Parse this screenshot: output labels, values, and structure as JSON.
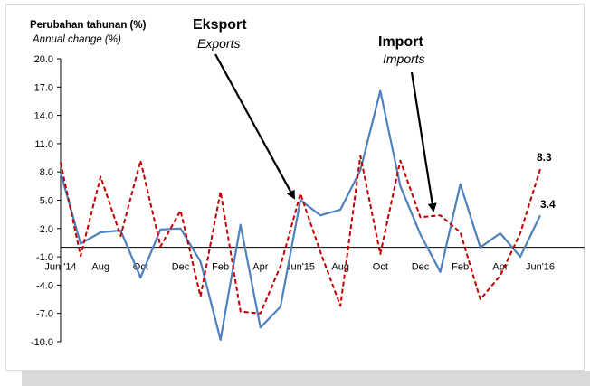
{
  "chart_data": {
    "type": "line",
    "ylabel": "Perubahan tahunan (%)",
    "ylabel_en": "Annual change (%)",
    "yticks": [
      "20.0",
      "17.0",
      "14.0",
      "11.0",
      "8.0",
      "5.0",
      "2.0",
      "-1.0",
      "-4.0",
      "-7.0",
      "-10.0"
    ],
    "ylim": [
      -10,
      20
    ],
    "x_tick_labels": [
      {
        "label": "Jun '14",
        "i": 0
      },
      {
        "label": "Aug",
        "i": 2
      },
      {
        "label": "Oct",
        "i": 4
      },
      {
        "label": "Dec",
        "i": 6
      },
      {
        "label": "Feb",
        "i": 8
      },
      {
        "label": "Apr",
        "i": 10
      },
      {
        "label": "Jun'15",
        "i": 12
      },
      {
        "label": "Aug",
        "i": 14
      },
      {
        "label": "Oct",
        "i": 16
      },
      {
        "label": "Dec",
        "i": 18
      },
      {
        "label": "Feb",
        "i": 20
      },
      {
        "label": "Apr",
        "i": 22
      },
      {
        "label": "Jun'16",
        "i": 24
      }
    ],
    "series": [
      {
        "name": "Eksport",
        "name_en": "Exports",
        "color": "#4f81bd",
        "dash": "solid",
        "values": [
          7.9,
          0.4,
          1.6,
          1.8,
          -3.2,
          1.9,
          2.0,
          -1.5,
          -9.8,
          2.4,
          -8.5,
          -6.3,
          5.0,
          3.4,
          4.0,
          8.2,
          16.6,
          6.5,
          1.4,
          -2.6,
          6.7,
          0.0,
          1.5,
          -1.0,
          3.4
        ]
      },
      {
        "name": "Import",
        "name_en": "Imports",
        "color": "#c00000",
        "dash": "dashed",
        "values": [
          9.0,
          -0.9,
          7.5,
          1.2,
          9.2,
          0.1,
          3.9,
          -5.2,
          5.9,
          -6.8,
          -7.0,
          -2.0,
          5.7,
          -0.5,
          -6.2,
          9.7,
          -0.7,
          9.2,
          3.2,
          3.4,
          1.6,
          -5.5,
          -3.0,
          1.5,
          8.3
        ]
      }
    ],
    "end_labels": {
      "exports": "3.4",
      "imports": "8.3"
    },
    "grid": false,
    "legend": "annotations"
  }
}
